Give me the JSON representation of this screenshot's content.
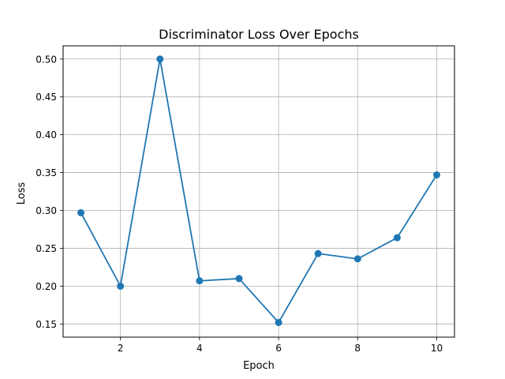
{
  "chart_data": {
    "type": "line",
    "title": "Discriminator Loss Over Epochs",
    "xlabel": "Epoch",
    "ylabel": "Loss",
    "xlim": [
      0.55,
      10.45
    ],
    "ylim": [
      0.1326,
      0.5175
    ],
    "x_ticks": [
      2,
      4,
      6,
      8,
      10
    ],
    "y_ticks": [
      0.15,
      0.2,
      0.25,
      0.3,
      0.35,
      0.4,
      0.45,
      0.5
    ],
    "y_tick_labels": [
      "0.15",
      "0.20",
      "0.25",
      "0.30",
      "0.35",
      "0.40",
      "0.45",
      "0.50"
    ],
    "grid": true,
    "marker": "circle",
    "color": "#1f77b4",
    "x": [
      1,
      2,
      3,
      4,
      5,
      6,
      7,
      8,
      9,
      10
    ],
    "values": [
      0.297,
      0.2,
      0.5,
      0.207,
      0.21,
      0.152,
      0.243,
      0.236,
      0.264,
      0.347
    ]
  }
}
